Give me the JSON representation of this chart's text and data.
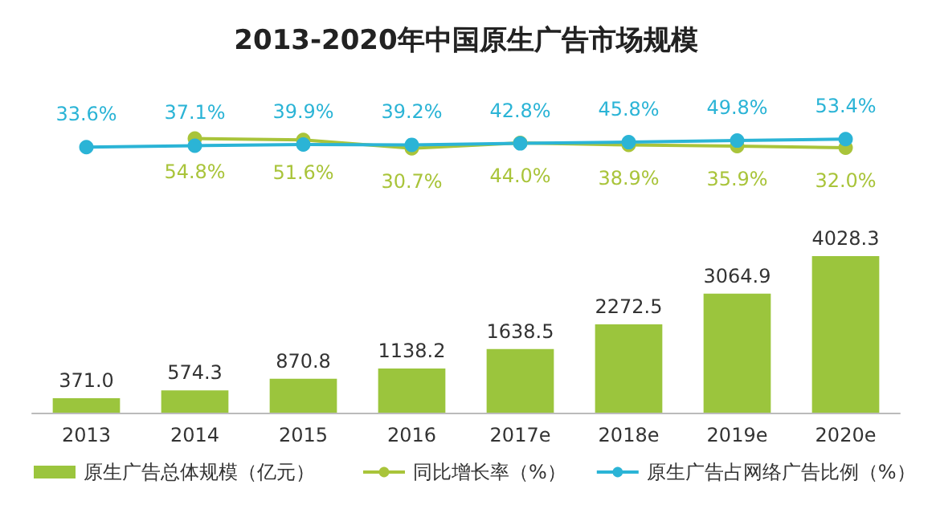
{
  "chart_data": [
    {
      "type": "line",
      "title": "2013-2020年中国原生广告市场规模",
      "categories": [
        null,
        null,
        null,
        null,
        null,
        null,
        null,
        null
      ],
      "marker": "circle",
      "legend": "bottom",
      "series": [
        {
          "name": "同比增长率（%）",
          "color": "#a9c43a",
          "values": [
            null,
            54.8,
            51.6,
            30.7,
            44.0,
            38.9,
            35.9,
            32.0
          ],
          "value_labels": [
            null,
            "54.8%",
            "51.6%",
            "30.7%",
            "44.0%",
            "38.9%",
            "35.9%",
            "32.0%"
          ]
        },
        {
          "name": "原生广告占网络广告比例（%）",
          "color": "#2bb4d6",
          "values": [
            33.6,
            37.1,
            39.9,
            39.2,
            42.8,
            45.8,
            49.8,
            53.4
          ],
          "value_labels": [
            "33.6%",
            "37.1%",
            "39.9%",
            "39.2%",
            "42.8%",
            "45.8%",
            "49.8%",
            "53.4%"
          ]
        }
      ]
    },
    {
      "type": "bar",
      "categories": [
        "2013",
        "2014",
        "2015",
        "2016",
        "2017e",
        "2018e",
        "2019e",
        "2020e"
      ],
      "legend": "bottom",
      "series": [
        {
          "name": "原生广告总体规模（亿元）",
          "color": "#9bc53d",
          "values": [
            371.0,
            574.3,
            870.8,
            1138.2,
            1638.5,
            2272.5,
            3064.9,
            4028.3
          ],
          "value_labels": [
            "371.0",
            "574.3",
            "870.8",
            "1138.2",
            "1638.5",
            "2272.5",
            "3064.9",
            "4028.3"
          ]
        }
      ]
    }
  ]
}
